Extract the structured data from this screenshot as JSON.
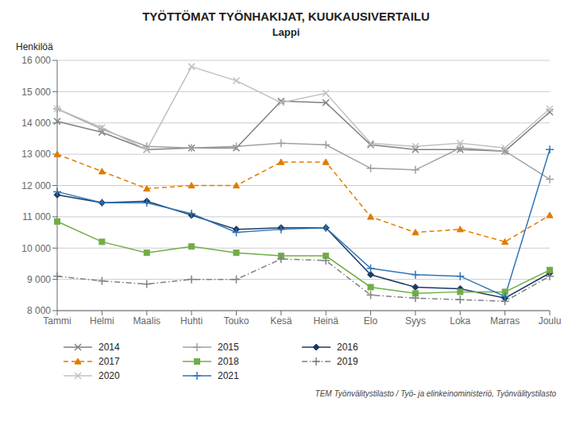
{
  "chart_data": {
    "type": "line",
    "title": "TYÖTTÖMAT TYÖNHAKIJAT, KUUKAUSIVERTAILU",
    "subtitle": "Lappi",
    "y_label": "Henkilöä",
    "footer": "TEM Työnvälitystilasto / Työ- ja elinkeinoministeriö, Työnvälitystilasto",
    "categories": [
      "Tammi",
      "Helmi",
      "Maalis",
      "Huhti",
      "Touko",
      "Kesä",
      "Heinä",
      "Elo",
      "Syys",
      "Loka",
      "Marras",
      "Joulu"
    ],
    "ylim": [
      8000,
      16000
    ],
    "yticks": [
      {
        "value": 8000,
        "label": "8 000"
      },
      {
        "value": 9000,
        "label": "9 000"
      },
      {
        "value": 10000,
        "label": "10 000"
      },
      {
        "value": 11000,
        "label": "11 000"
      },
      {
        "value": 12000,
        "label": "12 000"
      },
      {
        "value": 13000,
        "label": "13 000"
      },
      {
        "value": 14000,
        "label": "14 000"
      },
      {
        "value": 15000,
        "label": "15 000"
      },
      {
        "value": 16000,
        "label": "16 000"
      }
    ],
    "grid": true,
    "legend": "bottom",
    "series": [
      {
        "name": "2014",
        "color": "#808080",
        "marker": "x",
        "line_style": "solid",
        "values": [
          14050,
          13700,
          13150,
          13200,
          13200,
          14700,
          14650,
          13300,
          13150,
          13150,
          13100,
          14350
        ]
      },
      {
        "name": "2015",
        "color": "#a0a0a0",
        "marker": "plus",
        "line_style": "solid",
        "values": [
          14450,
          13800,
          13250,
          13200,
          13250,
          13350,
          13300,
          12550,
          12500,
          13200,
          13100,
          12200
        ]
      },
      {
        "name": "2016",
        "color": "#1f3864",
        "marker": "diamond",
        "line_style": "solid",
        "values": [
          11700,
          11450,
          11500,
          11050,
          10600,
          10650,
          10650,
          9150,
          8750,
          8700,
          8400,
          9200
        ]
      },
      {
        "name": "2017",
        "color": "#e07b00",
        "marker": "triangle",
        "line_style": "dashed",
        "values": [
          13000,
          12450,
          11900,
          12000,
          12000,
          12750,
          12750,
          11000,
          10500,
          10600,
          10200,
          11050
        ]
      },
      {
        "name": "2018",
        "color": "#70ad47",
        "marker": "square",
        "line_style": "solid",
        "values": [
          10850,
          10200,
          9850,
          10050,
          9850,
          9750,
          9750,
          8750,
          8550,
          8600,
          8600,
          9300
        ]
      },
      {
        "name": "2019",
        "color": "#808080",
        "marker": "plus",
        "line_style": "dashdot",
        "values": [
          9100,
          8950,
          8850,
          9000,
          9000,
          9650,
          9600,
          8500,
          8400,
          8350,
          8300,
          9100
        ]
      },
      {
        "name": "2020",
        "color": "#c0c0c0",
        "marker": "x",
        "line_style": "solid",
        "values": [
          14450,
          13850,
          13150,
          15800,
          15350,
          14650,
          14950,
          13350,
          13250,
          13350,
          13200,
          14450
        ]
      },
      {
        "name": "2021",
        "color": "#2e75b6",
        "marker": "plus",
        "line_style": "solid",
        "values": [
          11800,
          11450,
          11450,
          11100,
          10500,
          10600,
          10650,
          9350,
          9150,
          9100,
          8450,
          13150
        ]
      }
    ]
  }
}
